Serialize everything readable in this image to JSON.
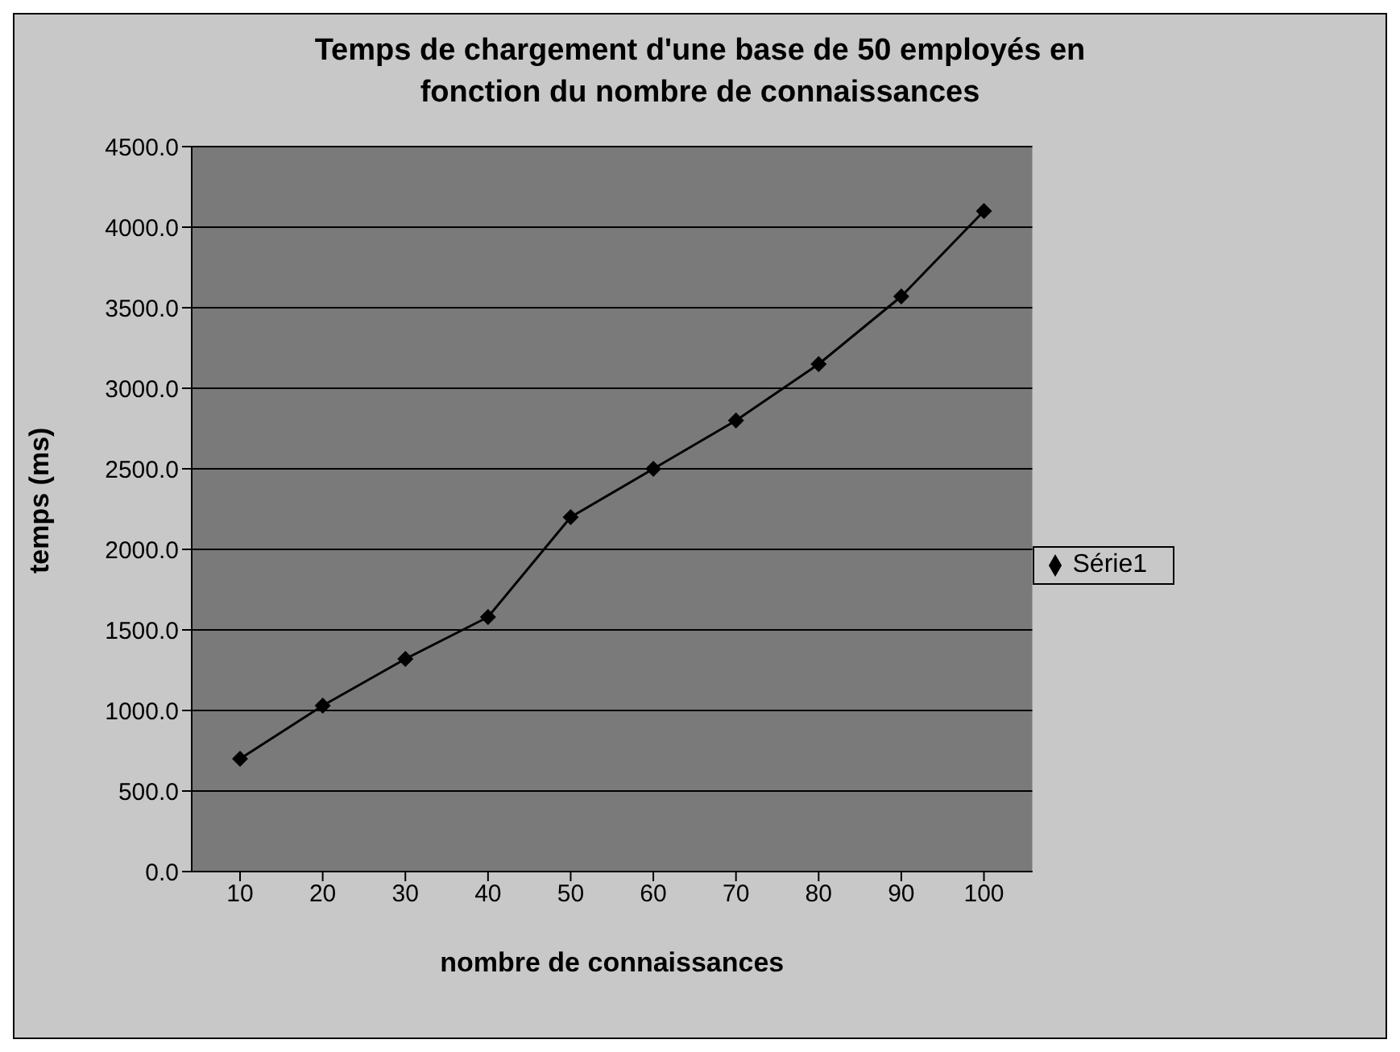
{
  "chart_data": {
    "type": "line",
    "title": "Temps de chargement d'une base de 50 employés en fonction du nombre de connaissances",
    "xlabel": "nombre de connaissances",
    "ylabel": "temps (ms)",
    "categories": [
      "10",
      "20",
      "30",
      "40",
      "50",
      "60",
      "70",
      "80",
      "90",
      "100"
    ],
    "series": [
      {
        "name": "Série1",
        "color": "#000000",
        "values": [
          700,
          1030,
          1320,
          1580,
          2200,
          2500,
          2800,
          3150,
          3570,
          4100
        ]
      }
    ],
    "ylim": [
      0,
      4500
    ],
    "yticks": [
      {
        "value": 0,
        "label": "0.0"
      },
      {
        "value": 500,
        "label": "500.0"
      },
      {
        "value": 1000,
        "label": "1000.0"
      },
      {
        "value": 1500,
        "label": "1500.0"
      },
      {
        "value": 2000,
        "label": "2000.0"
      },
      {
        "value": 2500,
        "label": "2500.0"
      },
      {
        "value": 3000,
        "label": "3000.0"
      },
      {
        "value": 3500,
        "label": "3500.0"
      },
      {
        "value": 4000,
        "label": "4000.0"
      },
      {
        "value": 4500,
        "label": "4500.0"
      }
    ],
    "grid": "y",
    "legend": "right",
    "marker": "diamond",
    "line_style": "solid"
  }
}
